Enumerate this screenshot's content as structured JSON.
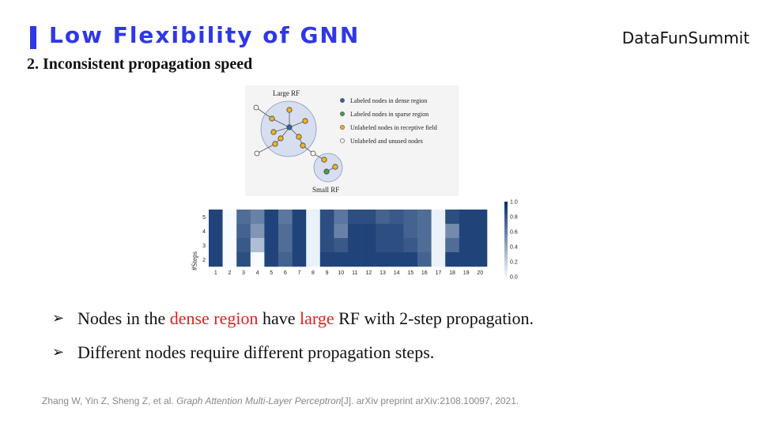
{
  "header": {
    "title": "Low Flexibility of GNN",
    "brand": "DataFunSummit",
    "subtitle": "2. Inconsistent propagation speed"
  },
  "figure": {
    "large_rf_label": "Large RF",
    "small_rf_label": "Small RF",
    "legend": [
      {
        "label": "Labeled nodes in dense region",
        "color": "#3a5fa8"
      },
      {
        "label": "Labeled nodes in sparse region",
        "color": "#4f9a4a"
      },
      {
        "label": "Unlabeled nodes in receptive field",
        "color": "#f0b41e"
      },
      {
        "label": "Unlabeled and unused nodes",
        "color": "#ffffff"
      }
    ]
  },
  "chart_data": {
    "type": "heatmap",
    "ylabel": "#Steps",
    "x": [
      "1",
      "2",
      "3",
      "4",
      "5",
      "6",
      "7",
      "8",
      "9",
      "10",
      "11",
      "12",
      "13",
      "14",
      "15",
      "16",
      "17",
      "18",
      "19",
      "20"
    ],
    "y": [
      "5",
      "4",
      "3",
      "2"
    ],
    "values": [
      [
        0.9,
        0.0,
        0.7,
        0.6,
        0.9,
        0.65,
        0.9,
        0.05,
        0.85,
        0.65,
        0.85,
        0.85,
        0.75,
        0.8,
        0.75,
        0.7,
        0.05,
        0.85,
        0.9,
        0.9
      ],
      [
        0.9,
        0.0,
        0.75,
        0.5,
        0.9,
        0.7,
        0.9,
        0.05,
        0.85,
        0.6,
        0.9,
        0.9,
        0.85,
        0.85,
        0.75,
        0.7,
        0.05,
        0.55,
        0.9,
        0.9
      ],
      [
        0.9,
        0.0,
        0.8,
        0.3,
        0.9,
        0.7,
        0.9,
        0.05,
        0.85,
        0.8,
        0.9,
        0.9,
        0.85,
        0.85,
        0.8,
        0.7,
        0.05,
        0.7,
        0.9,
        0.9
      ],
      [
        0.9,
        0.0,
        0.85,
        0.0,
        0.9,
        0.75,
        0.9,
        0.05,
        0.9,
        0.9,
        0.9,
        0.9,
        0.9,
        0.9,
        0.9,
        0.75,
        0.05,
        0.9,
        0.9,
        0.9
      ]
    ],
    "colorbar_ticks": [
      "1.0",
      "0.8",
      "0.6",
      "0.4",
      "0.2",
      "0.0"
    ],
    "vmin": 0,
    "vmax": 1,
    "colormap": [
      "#f7fbff",
      "#08306b"
    ]
  },
  "bullets": [
    {
      "arrow": "➢",
      "parts": [
        {
          "text": "Nodes in the ",
          "red": false
        },
        {
          "text": "dense region",
          "red": true
        },
        {
          "text": " have ",
          "red": false
        },
        {
          "text": "large",
          "red": true
        },
        {
          "text": " RF with 2-step  propagation.",
          "red": false
        }
      ]
    },
    {
      "arrow": "➢",
      "parts": [
        {
          "text": "Different nodes require different propagation steps.",
          "red": false
        }
      ]
    }
  ],
  "citation": {
    "authors": "Zhang W, Yin Z, Sheng Z, et al. ",
    "title": "Graph Attention Multi-Layer Perceptron",
    "rest": "[J]. arXiv preprint arXiv:2108.10097, 2021."
  },
  "colors": {
    "accent": "#2f38e6",
    "highlight": "#e02020"
  }
}
